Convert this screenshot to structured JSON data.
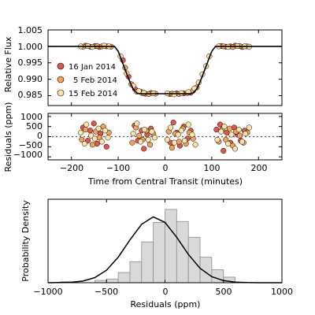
{
  "colors": {
    "16 Jan 2014": "#e0564a",
    "5 Feb 2014": "#f4a259",
    "15 Feb 2014": "#fde3a7",
    "histogram_fill": "#d9d9d9",
    "histogram_edge": "#8c8c8c"
  },
  "chart_data": [
    {
      "type": "scatter",
      "panel": "light curve",
      "ylabel": "Relative Flux",
      "xlim": [
        -250,
        250
      ],
      "ylim": [
        0.982,
        1.005
      ],
      "yticks": [
        "1.005",
        "1.000",
        "0.995",
        "0.990",
        "0.985"
      ],
      "ytick_values": [
        1.005,
        1.0,
        0.995,
        0.99,
        0.985
      ],
      "legend_position": "left",
      "legend": [
        "16 Jan 2014",
        "5 Feb 2014",
        "15 Feb 2014"
      ],
      "model": {
        "type": "line",
        "x": [
          -250,
          -108,
          -100,
          -92,
          -84,
          -76,
          -68,
          -60,
          -55,
          55,
          60,
          68,
          76,
          84,
          92,
          100,
          108,
          250
        ],
        "y": [
          1.0,
          1.0,
          0.9985,
          0.9955,
          0.9925,
          0.9895,
          0.987,
          0.9858,
          0.9856,
          0.9856,
          0.9858,
          0.987,
          0.9895,
          0.9925,
          0.9955,
          0.9985,
          1.0,
          1.0
        ]
      },
      "series": [
        {
          "name": "16 Jan 2014",
          "x": [
            -170,
            -160,
            -150,
            -140,
            -125,
            -90,
            -78,
            -64,
            -52,
            -42,
            -30,
            10,
            25,
            40,
            55,
            120,
            130,
            140,
            150,
            165
          ],
          "y": [
            1.0002,
            0.9999,
            1.0001,
            0.9998,
            1.0,
            0.9958,
            0.9908,
            0.987,
            0.9862,
            0.9856,
            0.9858,
            0.9855,
            0.9857,
            0.9857,
            0.9859,
            1.0001,
            0.9999,
            1.0,
            1.0002,
            0.9998
          ]
        },
        {
          "name": "5 Feb 2014",
          "x": [
            -175,
            -145,
            -135,
            -115,
            -85,
            -72,
            -60,
            -48,
            -35,
            -20,
            15,
            30,
            48,
            60,
            68,
            125,
            145,
            160,
            175
          ],
          "y": [
            0.9999,
            1.0001,
            1.0,
            0.9999,
            0.9935,
            0.9885,
            0.9862,
            0.9857,
            0.9855,
            0.9856,
            0.9856,
            0.9855,
            0.9858,
            0.9865,
            0.9875,
            1.0,
            0.9998,
            1.0001,
            1.0
          ]
        },
        {
          "name": "15 Feb 2014",
          "x": [
            -180,
            -165,
            -155,
            -130,
            -120,
            -95,
            -82,
            -68,
            -56,
            -45,
            -25,
            5,
            20,
            35,
            50,
            63,
            72,
            80,
            88,
            95,
            115,
            135,
            155,
            170,
            180
          ],
          "y": [
            1.0,
            1.0001,
            0.9998,
            1.0002,
            1.0,
            0.997,
            0.9918,
            0.988,
            0.9864,
            0.9859,
            0.9857,
            0.9857,
            0.9854,
            0.9858,
            0.9861,
            0.9872,
            0.989,
            0.9915,
            0.994,
            0.997,
            1.0,
            0.9999,
            1.0001,
            1.0,
            0.9999
          ]
        }
      ]
    },
    {
      "type": "scatter",
      "panel": "residuals",
      "ylabel": "Residuals (ppm)",
      "xlabel": "Time from Central Transit (minutes)",
      "xlim": [
        -250,
        250
      ],
      "ylim": [
        -1150,
        1150
      ],
      "yticks": [
        "1000",
        "500",
        "0",
        "−500",
        "−1000"
      ],
      "ytick_values": [
        1000,
        500,
        0,
        -500,
        -1000
      ],
      "xticks": [
        "−200",
        "−100",
        "0",
        "100",
        "200"
      ],
      "xtick_values": [
        -200,
        -100,
        0,
        100,
        200
      ],
      "zero_line": "dotted",
      "series": [
        {
          "name": "16 Jan 2014",
          "x": [
            -175,
            -165,
            -160,
            -152,
            -145,
            -138,
            -125,
            -65,
            -58,
            -50,
            -45,
            -38,
            -30,
            12,
            18,
            25,
            32,
            40,
            48,
            55,
            110,
            118,
            125,
            132,
            140,
            148,
            155,
            162,
            170
          ],
          "y": [
            450,
            -200,
            300,
            650,
            -350,
            150,
            -500,
            550,
            -200,
            300,
            -600,
            100,
            400,
            -300,
            700,
            200,
            -450,
            500,
            -100,
            300,
            350,
            600,
            -700,
            200,
            -300,
            450,
            100,
            -200,
            300
          ]
        },
        {
          "name": "5 Feb 2014",
          "x": [
            -178,
            -170,
            -155,
            -148,
            -140,
            -132,
            -120,
            -70,
            -62,
            -55,
            -48,
            -40,
            -32,
            -25,
            8,
            15,
            22,
            30,
            38,
            45,
            52,
            60,
            115,
            122,
            130,
            138,
            145,
            152,
            160,
            168,
            176
          ],
          "y": [
            -150,
            350,
            -400,
            250,
            -50,
            500,
            200,
            -300,
            450,
            50,
            -150,
            300,
            -400,
            150,
            250,
            -550,
            150,
            -250,
            400,
            -350,
            200,
            -100,
            -250,
            350,
            -150,
            400,
            -450,
            250,
            50,
            -300,
            200
          ]
        },
        {
          "name": "15 Feb 2014",
          "x": [
            -180,
            -172,
            -168,
            -158,
            -150,
            -142,
            -135,
            -128,
            -122,
            -68,
            -60,
            -52,
            -44,
            -36,
            -28,
            -22,
            5,
            12,
            20,
            28,
            35,
            42,
            50,
            58,
            65,
            112,
            120,
            127,
            135,
            142,
            150,
            158,
            165,
            172,
            180
          ],
          "y": [
            200,
            -350,
            600,
            50,
            -100,
            400,
            -250,
            300,
            -50,
            150,
            650,
            -250,
            350,
            -150,
            250,
            -50,
            -150,
            450,
            -300,
            100,
            300,
            -200,
            600,
            100,
            -400,
            -150,
            250,
            500,
            -350,
            100,
            -600,
            350,
            -250,
            150,
            450
          ]
        }
      ]
    },
    {
      "type": "bar",
      "panel": "residual histogram",
      "ylabel": "Probability Density",
      "xlabel": "Residuals (ppm)",
      "xlim": [
        -1000,
        1000
      ],
      "xticks": [
        "−1000",
        "−500",
        "0",
        "500",
        "1000"
      ],
      "xtick_values": [
        -1000,
        -500,
        0,
        500,
        1000
      ],
      "ylim": [
        0,
        0.0018
      ],
      "bin_edges": [
        -900,
        -800,
        -700,
        -600,
        -500,
        -400,
        -300,
        -200,
        -100,
        0,
        100,
        200,
        300,
        400,
        500,
        600
      ],
      "values": [
        2e-05,
        0.0,
        0.0,
        5e-05,
        8e-05,
        0.00022,
        0.00045,
        0.00088,
        0.0013,
        0.00158,
        0.00132,
        0.00098,
        0.00055,
        0.00028,
        0.00012
      ],
      "fit": {
        "type": "line",
        "label": "",
        "x": [
          -1000,
          -900,
          -800,
          -700,
          -600,
          -500,
          -400,
          -300,
          -200,
          -100,
          0,
          100,
          200,
          300,
          400,
          500,
          600,
          700,
          800,
          900,
          1000
        ],
        "y": [
          5e-07,
          3e-06,
          1e-05,
          3.6e-05,
          0.00011,
          0.00027,
          0.00055,
          0.00092,
          0.00126,
          0.00142,
          0.0013,
          0.00098,
          0.00061,
          0.00031,
          0.00013,
          4.6e-05,
          1.3e-05,
          3e-06,
          5e-07,
          1e-07,
          0.0
        ]
      }
    }
  ]
}
